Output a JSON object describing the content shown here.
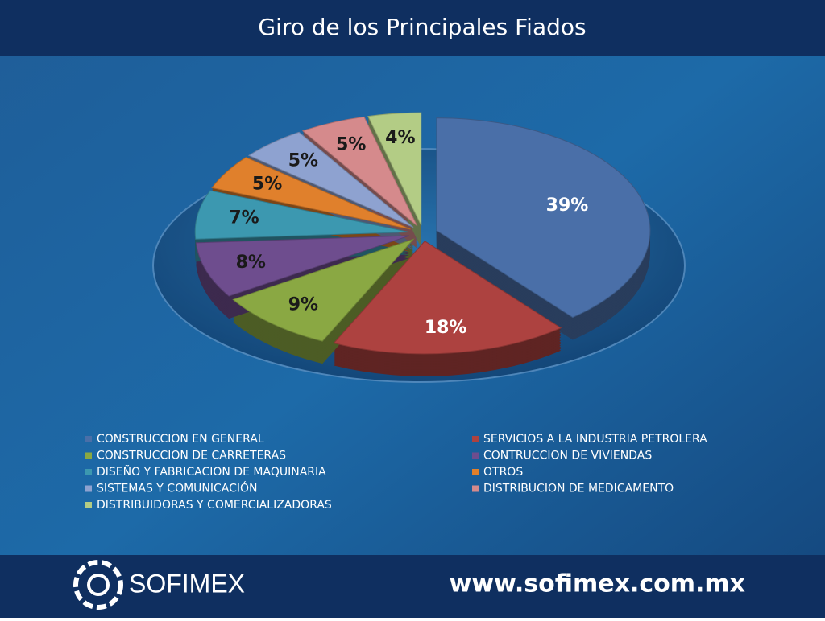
{
  "chart_data": {
    "type": "pie",
    "title": "Giro de los Principales Fiados",
    "categories": [
      "CONSTRUCCION EN GENERAL",
      "SERVICIOS A LA INDUSTRIA PETROLERA",
      "CONSTRUCCION DE CARRETERAS",
      "CONTRUCCION DE VIVIENDAS",
      "DISEÑO Y FABRICACION DE MAQUINARIA",
      "OTROS",
      "SISTEMAS Y COMUNICACIÓN",
      "DISTRIBUCION DE MEDICAMENTO",
      "DISTRIBUIDORAS Y COMERCIALIZADORAS"
    ],
    "values": [
      39,
      18,
      9,
      8,
      7,
      5,
      5,
      5,
      4
    ],
    "value_labels": [
      "39%",
      "18%",
      "9%",
      "8%",
      "7%",
      "5%",
      "5%",
      "5%",
      "4%"
    ],
    "colors": [
      "#4a6fa8",
      "#ad4240",
      "#8aa843",
      "#6e4d8e",
      "#3c98b0",
      "#e0802c",
      "#8ea2d0",
      "#d58a8c",
      "#b3cc85"
    ],
    "legend": "bottom"
  },
  "footer": {
    "brand": "SOFIMEX",
    "url": "www.sofimex.com.mx"
  }
}
